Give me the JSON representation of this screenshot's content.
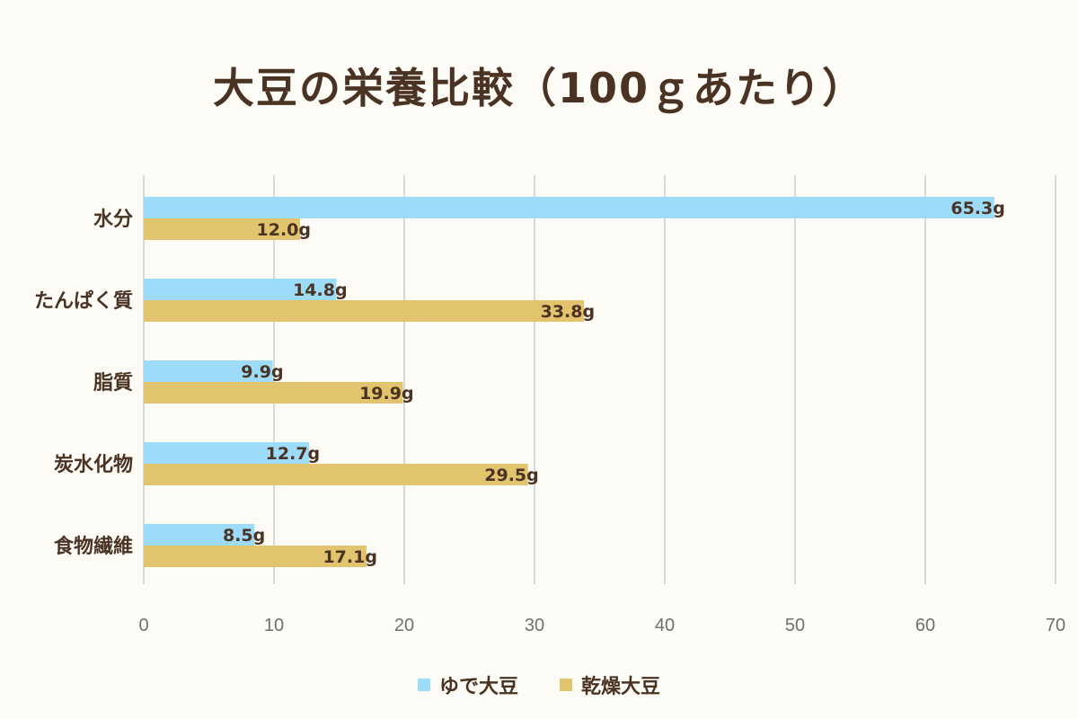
{
  "chart_data": {
    "type": "bar",
    "orientation": "horizontal",
    "title": "大豆の栄養比較（100ｇあたり）",
    "categories": [
      "水分",
      "たんぱく質",
      "脂質",
      "炭水化物",
      "食物繊維"
    ],
    "series": [
      {
        "name": "ゆで大豆",
        "color": "#9ddcf8",
        "values": [
          65.3,
          14.8,
          9.9,
          12.7,
          8.5
        ],
        "labels": [
          "65.3g",
          "14.8g",
          "9.9g",
          "12.7g",
          "8.5g"
        ]
      },
      {
        "name": "乾燥大豆",
        "color": "#e3c46e",
        "values": [
          12.0,
          33.8,
          19.9,
          29.5,
          17.1
        ],
        "labels": [
          "12.0g",
          "33.8g",
          "19.9g",
          "29.5g",
          "17.1g"
        ]
      }
    ],
    "xlim": [
      0,
      70
    ],
    "xticks": [
      "0",
      "10",
      "20",
      "30",
      "40",
      "50",
      "60",
      "70"
    ],
    "grid": true,
    "legend": "bottom-center"
  }
}
